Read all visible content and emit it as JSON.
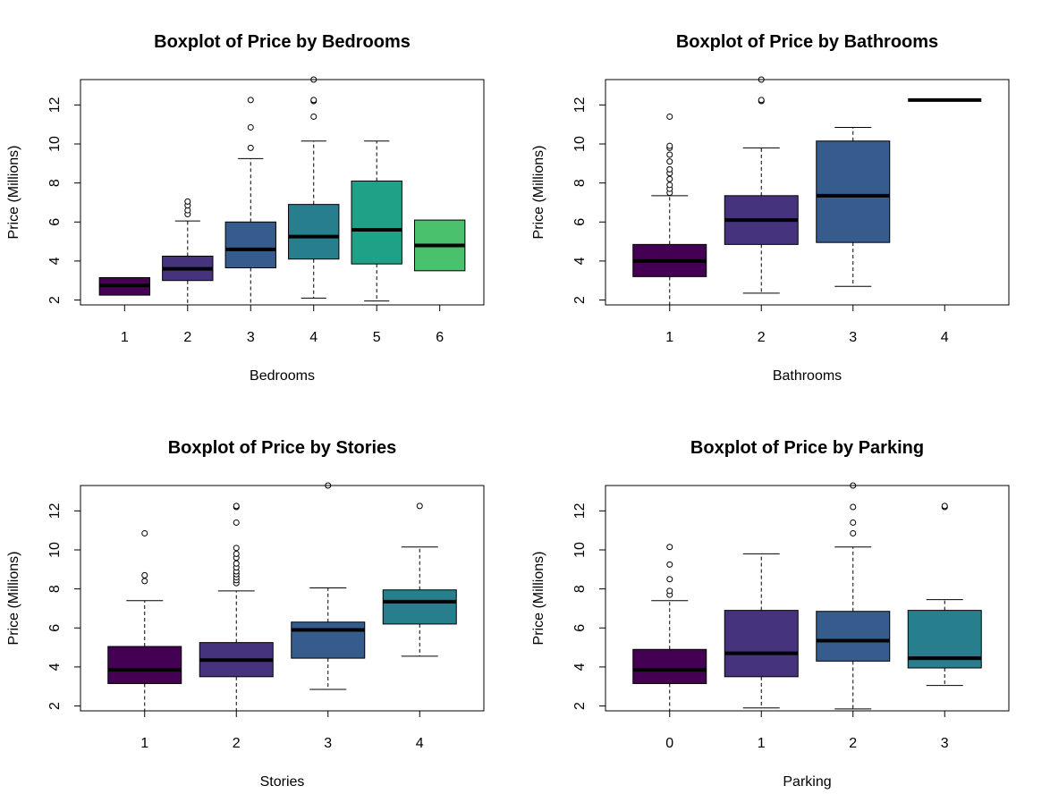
{
  "chart_data": [
    {
      "type": "boxplot",
      "title": "Boxplot of Price by Bedrooms",
      "xlabel": "Bedrooms",
      "ylabel": "Price (Millions)",
      "ylim": [
        1.75,
        13.3
      ],
      "yticks": [
        2,
        4,
        6,
        8,
        10,
        12
      ],
      "categories": [
        "1",
        "2",
        "3",
        "4",
        "5",
        "6"
      ],
      "boxes": [
        {
          "category": "1",
          "min": 2.25,
          "q1": 2.25,
          "median": 2.75,
          "q3": 3.15,
          "max": 3.15,
          "outliers": [],
          "color": "#440154"
        },
        {
          "category": "2",
          "min": 1.75,
          "q1": 3.0,
          "median": 3.6,
          "q3": 4.25,
          "max": 6.05,
          "outliers": [
            6.4,
            6.6,
            6.85,
            7.05
          ],
          "color": "#46337E"
        },
        {
          "category": "3",
          "min": 1.75,
          "q1": 3.65,
          "median": 4.6,
          "q3": 6.0,
          "max": 9.25,
          "outliers": [
            9.8,
            10.85,
            12.25
          ],
          "color": "#365C8D"
        },
        {
          "category": "4",
          "min": 2.1,
          "q1": 4.1,
          "median": 5.25,
          "q3": 6.9,
          "max": 10.15,
          "outliers": [
            11.4,
            12.2,
            12.25,
            13.3
          ],
          "color": "#277F8E"
        },
        {
          "category": "5",
          "min": 1.95,
          "q1": 3.85,
          "median": 5.6,
          "q3": 8.1,
          "max": 10.15,
          "outliers": [],
          "color": "#1FA187"
        },
        {
          "category": "6",
          "min": 3.5,
          "q1": 3.5,
          "median": 4.8,
          "q3": 6.1,
          "max": 6.1,
          "outliers": [],
          "color": "#4AC16D"
        }
      ]
    },
    {
      "type": "boxplot",
      "title": "Boxplot of Price by Bathrooms",
      "xlabel": "Bathrooms",
      "ylabel": "Price (Millions)",
      "ylim": [
        1.75,
        13.3
      ],
      "yticks": [
        2,
        4,
        6,
        8,
        10,
        12
      ],
      "categories": [
        "1",
        "2",
        "3",
        "4"
      ],
      "boxes": [
        {
          "category": "1",
          "min": 1.75,
          "q1": 3.2,
          "median": 4.0,
          "q3": 4.85,
          "max": 7.35,
          "outliers": [
            7.5,
            7.7,
            7.9,
            8.2,
            8.5,
            8.7,
            9.1,
            9.45,
            9.8,
            9.9,
            11.4
          ],
          "color": "#440154"
        },
        {
          "category": "2",
          "min": 2.35,
          "q1": 4.85,
          "median": 6.1,
          "q3": 7.35,
          "max": 9.8,
          "outliers": [
            12.2,
            12.25,
            13.3
          ],
          "color": "#46337E"
        },
        {
          "category": "3",
          "min": 2.7,
          "q1": 4.95,
          "median": 7.35,
          "q3": 10.15,
          "max": 10.85,
          "outliers": [],
          "color": "#365C8D"
        },
        {
          "category": "4",
          "min": 12.25,
          "q1": 12.25,
          "median": 12.25,
          "q3": 12.25,
          "max": 12.25,
          "outliers": [],
          "color": "#277F8E"
        }
      ]
    },
    {
      "type": "boxplot",
      "title": "Boxplot of Price by Stories",
      "xlabel": "Stories",
      "ylabel": "Price (Millions)",
      "ylim": [
        1.75,
        13.3
      ],
      "yticks": [
        2,
        4,
        6,
        8,
        10,
        12
      ],
      "categories": [
        "1",
        "2",
        "3",
        "4"
      ],
      "boxes": [
        {
          "category": "1",
          "min": 1.75,
          "q1": 3.15,
          "median": 3.85,
          "q3": 5.05,
          "max": 7.4,
          "outliers": [
            8.4,
            8.7,
            10.85
          ],
          "color": "#440154"
        },
        {
          "category": "2",
          "min": 1.75,
          "q1": 3.5,
          "median": 4.35,
          "q3": 5.25,
          "max": 7.9,
          "outliers": [
            8.3,
            8.45,
            8.6,
            8.75,
            8.9,
            9.1,
            9.3,
            9.6,
            9.8,
            10.1,
            11.4,
            12.2,
            12.25
          ],
          "color": "#46337E"
        },
        {
          "category": "3",
          "min": 2.85,
          "q1": 4.45,
          "median": 5.9,
          "q3": 6.3,
          "max": 8.05,
          "outliers": [
            13.3
          ],
          "color": "#365C8D"
        },
        {
          "category": "4",
          "min": 4.55,
          "q1": 6.2,
          "median": 7.35,
          "q3": 7.95,
          "max": 10.15,
          "outliers": [
            12.25
          ],
          "color": "#277F8E"
        }
      ]
    },
    {
      "type": "boxplot",
      "title": "Boxplot of Price by Parking",
      "xlabel": "Parking",
      "ylabel": "Price (Millions)",
      "ylim": [
        1.75,
        13.3
      ],
      "yticks": [
        2,
        4,
        6,
        8,
        10,
        12
      ],
      "categories": [
        "0",
        "1",
        "2",
        "3"
      ],
      "boxes": [
        {
          "category": "0",
          "min": 1.75,
          "q1": 3.15,
          "median": 3.85,
          "q3": 4.9,
          "max": 7.4,
          "outliers": [
            7.7,
            7.9,
            8.5,
            9.25,
            10.15
          ],
          "color": "#440154"
        },
        {
          "category": "1",
          "min": 1.9,
          "q1": 3.5,
          "median": 4.7,
          "q3": 6.9,
          "max": 9.8,
          "outliers": [],
          "color": "#46337E"
        },
        {
          "category": "2",
          "min": 1.85,
          "q1": 4.3,
          "median": 5.35,
          "q3": 6.85,
          "max": 10.15,
          "outliers": [
            10.85,
            11.4,
            12.2,
            13.3
          ],
          "color": "#365C8D"
        },
        {
          "category": "3",
          "min": 3.05,
          "q1": 3.95,
          "median": 4.45,
          "q3": 6.9,
          "max": 7.45,
          "outliers": [
            12.2,
            12.25
          ],
          "color": "#277F8E"
        }
      ]
    }
  ]
}
